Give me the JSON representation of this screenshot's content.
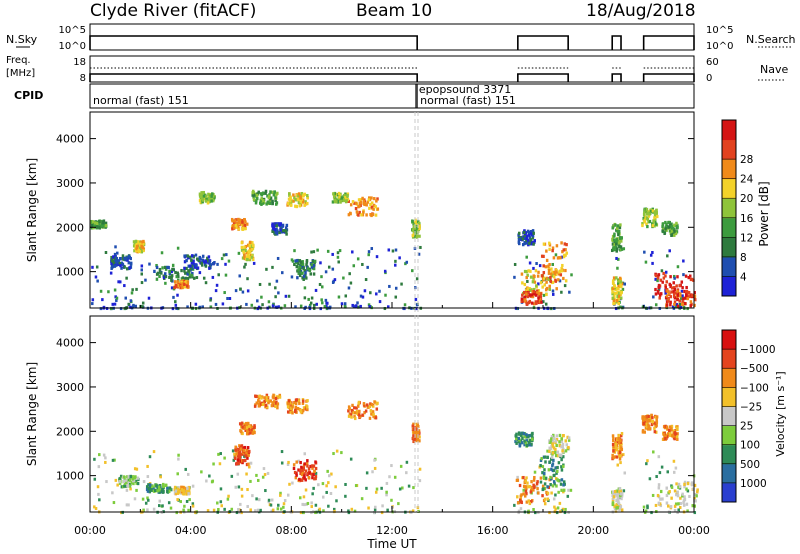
{
  "header": {
    "station": "Clyde River (fitACF)",
    "beam": "Beam 10",
    "date": "18/Aug/2018"
  },
  "labels": {
    "nsky": "N.Sky",
    "nsearch": "N.Search",
    "freq_line1": "Freq.",
    "freq_line2": "[MHz]",
    "nave": "Nave",
    "cpid": "CPID"
  },
  "chart_data": [
    {
      "type": "line",
      "panel": "noise",
      "y_left_ticks": [
        "10^5",
        "10^0"
      ],
      "y_right_ticks": [
        "10^5",
        "10^0"
      ],
      "segments_hours": [
        [
          0.0,
          13.0
        ],
        [
          17.0,
          19.0
        ],
        [
          20.75,
          21.1
        ],
        [
          22.0,
          24.0
        ]
      ],
      "series": [
        {
          "name": "N.Sky",
          "style": "solid"
        },
        {
          "name": "N.Search",
          "style": "dotted"
        }
      ]
    },
    {
      "type": "line",
      "panel": "frequency",
      "y_left_ticks": [
        "18",
        "8"
      ],
      "y_right_ticks": [
        "60",
        "0"
      ],
      "segments_hours": [
        [
          0.0,
          13.0
        ],
        [
          17.0,
          19.0
        ],
        [
          20.75,
          21.1
        ],
        [
          22.0,
          24.0
        ]
      ],
      "series": [
        {
          "name": "Freq.",
          "style": "solid"
        },
        {
          "name": "Nave",
          "style": "dotted"
        }
      ]
    },
    {
      "type": "table",
      "panel": "cpid",
      "entries": [
        {
          "start_hour": 0.0,
          "label": "normal (fast) 151"
        },
        {
          "start_hour": 12.95,
          "label": "epopsound 3371"
        },
        {
          "start_hour": 13.0,
          "label": "normal (fast) 151"
        }
      ]
    },
    {
      "type": "heatmap",
      "panel": "power",
      "ylabel": "Slant Range [km]",
      "ylim": [
        180,
        4600
      ],
      "y_ticks": [
        1000,
        2000,
        3000,
        4000
      ],
      "colorbar_label": "Power [dB]",
      "colorbar_ticks": [
        "4",
        "8",
        "12",
        "16",
        "20",
        "24",
        "28"
      ],
      "colorbar_colors": [
        "#1e22d6",
        "#1f4eb0",
        "#2e7a3e",
        "#3c9b3e",
        "#8fc43a",
        "#f3d22a",
        "#f08a1a",
        "#e2421f",
        "#d41414"
      ],
      "blobs": [
        {
          "t": 0.3,
          "r": 2100,
          "dt": 0.3,
          "dr": 80,
          "level": 3
        },
        {
          "t": 1.2,
          "r": 1250,
          "dt": 0.4,
          "dr": 160,
          "level": 1
        },
        {
          "t": 1.9,
          "r": 1600,
          "dt": 0.2,
          "dr": 120,
          "level": 5
        },
        {
          "t": 3.3,
          "r": 1000,
          "dt": 0.8,
          "dr": 180,
          "level": 2
        },
        {
          "t": 3.6,
          "r": 750,
          "dt": 0.3,
          "dr": 80,
          "level": 6
        },
        {
          "t": 4.3,
          "r": 1250,
          "dt": 0.6,
          "dr": 150,
          "level": 1
        },
        {
          "t": 4.6,
          "r": 2700,
          "dt": 0.3,
          "dr": 120,
          "level": 4
        },
        {
          "t": 5.9,
          "r": 2100,
          "dt": 0.3,
          "dr": 120,
          "level": 6
        },
        {
          "t": 6.2,
          "r": 1500,
          "dt": 0.25,
          "dr": 200,
          "level": 5
        },
        {
          "t": 6.9,
          "r": 2700,
          "dt": 0.5,
          "dr": 150,
          "level": 3
        },
        {
          "t": 8.2,
          "r": 2650,
          "dt": 0.4,
          "dr": 150,
          "level": 5
        },
        {
          "t": 8.5,
          "r": 1100,
          "dt": 0.4,
          "dr": 220,
          "level": 2
        },
        {
          "t": 7.5,
          "r": 2000,
          "dt": 0.3,
          "dr": 120,
          "level": 1
        },
        {
          "t": 10.8,
          "r": 2500,
          "dt": 0.6,
          "dr": 200,
          "level": 6
        },
        {
          "t": 9.9,
          "r": 2700,
          "dt": 0.3,
          "dr": 100,
          "level": 4
        },
        {
          "t": 12.9,
          "r": 2000,
          "dt": 0.15,
          "dr": 200,
          "level": 4
        },
        {
          "t": 17.3,
          "r": 1800,
          "dt": 0.35,
          "dr": 160,
          "level": 1
        },
        {
          "t": 17.8,
          "r": 800,
          "dt": 0.7,
          "dr": 300,
          "level": 5
        },
        {
          "t": 18.4,
          "r": 1250,
          "dt": 0.5,
          "dr": 450,
          "level": 6
        },
        {
          "t": 17.5,
          "r": 450,
          "dt": 0.4,
          "dr": 150,
          "level": 7
        },
        {
          "t": 20.9,
          "r": 1800,
          "dt": 0.2,
          "dr": 300,
          "level": 3
        },
        {
          "t": 20.9,
          "r": 600,
          "dt": 0.2,
          "dr": 300,
          "level": 5
        },
        {
          "t": 22.2,
          "r": 2250,
          "dt": 0.3,
          "dr": 200,
          "level": 4
        },
        {
          "t": 23.2,
          "r": 700,
          "dt": 0.8,
          "dr": 300,
          "level": 8
        },
        {
          "t": 23.4,
          "r": 450,
          "dt": 0.6,
          "dr": 200,
          "level": 7
        },
        {
          "t": 23.0,
          "r": 2000,
          "dt": 0.3,
          "dr": 150,
          "level": 3
        }
      ]
    },
    {
      "type": "heatmap",
      "panel": "velocity",
      "ylabel": "Slant Range [km]",
      "xlabel": "Time UT",
      "ylim": [
        180,
        4600
      ],
      "y_ticks": [
        1000,
        2000,
        3000,
        4000
      ],
      "x_ticks": [
        "00:00",
        "04:00",
        "08:00",
        "12:00",
        "16:00",
        "20:00",
        "00:00"
      ],
      "colorbar_label": "Velocity [m s⁻¹]",
      "colorbar_ticks": [
        "1000",
        "500",
        "100",
        "25",
        "−25",
        "−100",
        "−500",
        "−1000"
      ],
      "colorbar_colors": [
        "#2a3fcf",
        "#2a6ea0",
        "#2e8b57",
        "#7dcc3c",
        "#c8c8c8",
        "#f2c02a",
        "#f08a1a",
        "#e4441e",
        "#d81010"
      ],
      "blobs": [
        {
          "t": 1.5,
          "r": 900,
          "dt": 0.4,
          "dr": 120,
          "level": 3
        },
        {
          "t": 2.7,
          "r": 750,
          "dt": 0.5,
          "dr": 90,
          "level": 2
        },
        {
          "t": 3.6,
          "r": 700,
          "dt": 0.3,
          "dr": 80,
          "level": 5
        },
        {
          "t": 6.0,
          "r": 1500,
          "dt": 0.3,
          "dr": 220,
          "level": 7
        },
        {
          "t": 6.2,
          "r": 2100,
          "dt": 0.3,
          "dr": 120,
          "level": 6
        },
        {
          "t": 7.0,
          "r": 2700,
          "dt": 0.5,
          "dr": 150,
          "level": 6
        },
        {
          "t": 8.5,
          "r": 1150,
          "dt": 0.45,
          "dr": 230,
          "level": 7
        },
        {
          "t": 8.2,
          "r": 2600,
          "dt": 0.4,
          "dr": 150,
          "level": 6
        },
        {
          "t": 10.8,
          "r": 2500,
          "dt": 0.6,
          "dr": 200,
          "level": 6
        },
        {
          "t": 12.9,
          "r": 2000,
          "dt": 0.15,
          "dr": 200,
          "level": 6
        },
        {
          "t": 17.2,
          "r": 1850,
          "dt": 0.35,
          "dr": 150,
          "level": 2
        },
        {
          "t": 17.6,
          "r": 700,
          "dt": 0.7,
          "dr": 300,
          "level": 6
        },
        {
          "t": 18.3,
          "r": 1100,
          "dt": 0.5,
          "dr": 400,
          "level": 2
        },
        {
          "t": 18.6,
          "r": 1700,
          "dt": 0.4,
          "dr": 250,
          "level": 4
        },
        {
          "t": 20.9,
          "r": 1700,
          "dt": 0.2,
          "dr": 300,
          "level": 6
        },
        {
          "t": 20.9,
          "r": 500,
          "dt": 0.2,
          "dr": 250,
          "level": 4
        },
        {
          "t": 22.2,
          "r": 2200,
          "dt": 0.3,
          "dr": 200,
          "level": 6
        },
        {
          "t": 23.3,
          "r": 600,
          "dt": 0.8,
          "dr": 300,
          "level": 4
        },
        {
          "t": 23.0,
          "r": 2000,
          "dt": 0.3,
          "dr": 150,
          "level": 6
        }
      ]
    }
  ]
}
